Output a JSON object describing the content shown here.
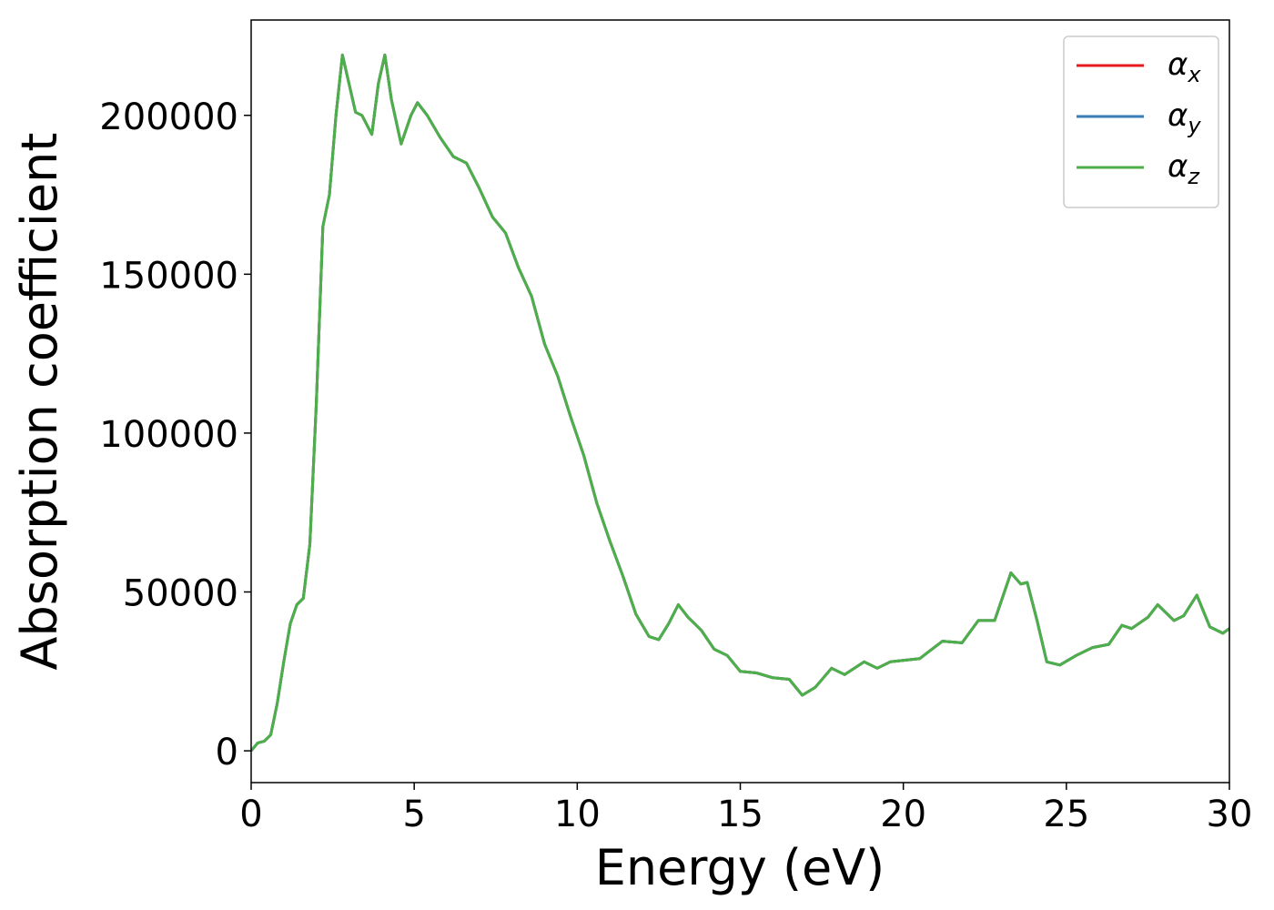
{
  "chart_data": {
    "type": "line",
    "x_label": "Energy (eV)",
    "y_label": "Absorption coefficient",
    "xlim": [
      0,
      30
    ],
    "ylim": [
      -10000,
      230000
    ],
    "xticks": [
      0,
      5,
      10,
      15,
      20,
      25,
      30
    ],
    "yticks": [
      0,
      50000,
      100000,
      150000,
      200000
    ],
    "legend": "upper right",
    "grid": false,
    "x": [
      0,
      0.2,
      0.4,
      0.6,
      0.8,
      1.0,
      1.2,
      1.4,
      1.6,
      1.8,
      2.0,
      2.2,
      2.4,
      2.6,
      2.8,
      3.0,
      3.2,
      3.4,
      3.7,
      3.9,
      4.1,
      4.3,
      4.6,
      4.9,
      5.1,
      5.4,
      5.8,
      6.2,
      6.6,
      7.0,
      7.4,
      7.8,
      8.2,
      8.6,
      9.0,
      9.4,
      9.8,
      10.2,
      10.6,
      11.0,
      11.4,
      11.8,
      12.2,
      12.5,
      12.8,
      13.1,
      13.4,
      13.8,
      14.2,
      14.6,
      15.0,
      15.5,
      16.0,
      16.5,
      16.9,
      17.3,
      17.8,
      18.2,
      18.8,
      19.2,
      19.6,
      20.5,
      21.2,
      21.8,
      22.3,
      22.8,
      23.3,
      23.6,
      23.8,
      24.1,
      24.4,
      24.8,
      25.3,
      25.8,
      26.3,
      26.7,
      27.0,
      27.5,
      27.8,
      28.3,
      28.6,
      29.0,
      29.4,
      29.8,
      30
    ],
    "series": [
      {
        "name": "αx",
        "color": "#e41a1c",
        "values": [
          0,
          2500,
          3000,
          5000,
          15000,
          28000,
          40000,
          46000,
          48000,
          65000,
          110000,
          165000,
          175000,
          200000,
          219000,
          210000,
          201000,
          200000,
          194000,
          210000,
          219000,
          205000,
          191000,
          200000,
          204000,
          200000,
          193000,
          187000,
          185000,
          177000,
          168000,
          163000,
          152000,
          143000,
          128000,
          118000,
          105000,
          93000,
          78000,
          66000,
          55000,
          43000,
          36000,
          35000,
          40000,
          46000,
          42000,
          38000,
          32000,
          30000,
          25000,
          24500,
          23000,
          22500,
          17500,
          20000,
          26000,
          24000,
          28000,
          26000,
          28000,
          29000,
          34500,
          34000,
          41000,
          41000,
          56000,
          52500,
          53000,
          41000,
          28000,
          27000,
          30000,
          32500,
          33500,
          39500,
          38500,
          42000,
          46000,
          41000,
          42500,
          49000,
          39000,
          37000,
          38500
        ]
      },
      {
        "name": "αy",
        "color": "#377eb8",
        "values": [
          0,
          2500,
          3000,
          5000,
          15000,
          28000,
          40000,
          46000,
          48000,
          65000,
          110000,
          165000,
          175000,
          200000,
          219000,
          210000,
          201000,
          200000,
          194000,
          210000,
          219000,
          205000,
          191000,
          200000,
          204000,
          200000,
          193000,
          187000,
          185000,
          177000,
          168000,
          163000,
          152000,
          143000,
          128000,
          118000,
          105000,
          93000,
          78000,
          66000,
          55000,
          43000,
          36000,
          35000,
          40000,
          46000,
          42000,
          38000,
          32000,
          30000,
          25000,
          24500,
          23000,
          22500,
          17500,
          20000,
          26000,
          24000,
          28000,
          26000,
          28000,
          29000,
          34500,
          34000,
          41000,
          41000,
          56000,
          52500,
          53000,
          41000,
          28000,
          27000,
          30000,
          32500,
          33500,
          39500,
          38500,
          42000,
          46000,
          41000,
          42500,
          49000,
          39000,
          37000,
          38500
        ]
      },
      {
        "name": "αz",
        "color": "#4daf4a",
        "values": [
          0,
          2500,
          3000,
          5000,
          15000,
          28000,
          40000,
          46000,
          48000,
          65000,
          110000,
          165000,
          175000,
          200000,
          219000,
          210000,
          201000,
          200000,
          194000,
          210000,
          219000,
          205000,
          191000,
          200000,
          204000,
          200000,
          193000,
          187000,
          185000,
          177000,
          168000,
          163000,
          152000,
          143000,
          128000,
          118000,
          105000,
          93000,
          78000,
          66000,
          55000,
          43000,
          36000,
          35000,
          40000,
          46000,
          42000,
          38000,
          32000,
          30000,
          25000,
          24500,
          23000,
          22500,
          17500,
          20000,
          26000,
          24000,
          28000,
          26000,
          28000,
          29000,
          34500,
          34000,
          41000,
          41000,
          56000,
          52500,
          53000,
          41000,
          28000,
          27000,
          30000,
          32500,
          33500,
          39500,
          38500,
          42000,
          46000,
          41000,
          42500,
          49000,
          39000,
          37000,
          38500
        ]
      }
    ]
  }
}
